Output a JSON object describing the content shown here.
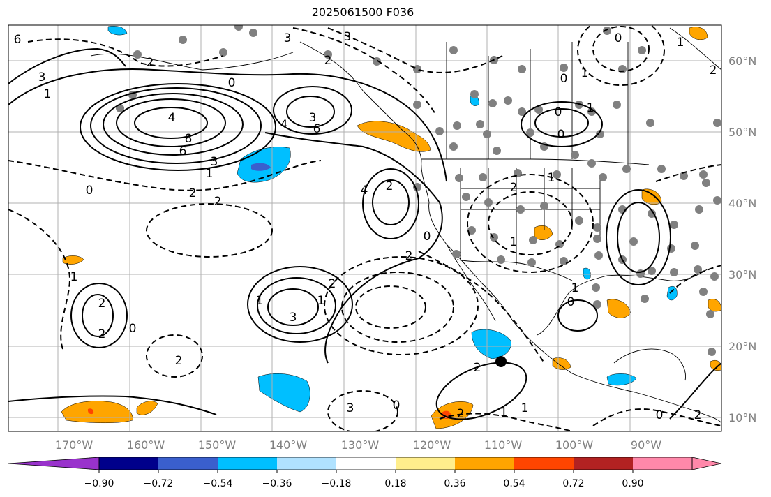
{
  "map": {
    "title": "2025061500 F036",
    "lon_ticks": [
      "170°W",
      "160°W",
      "150°W",
      "140°W",
      "130°W",
      "120°W",
      "110°W",
      "100°W",
      "90°W"
    ],
    "lat_ticks": [
      "60°N",
      "50°N",
      "40°N",
      "30°N",
      "20°N",
      "10°N"
    ],
    "contour_labels": [
      "6",
      "3",
      "1",
      "2",
      "0",
      "3",
      "4",
      "8",
      "6",
      "4",
      "3",
      "1",
      "0",
      "2",
      "2",
      "3",
      "6",
      "4",
      "2",
      "3",
      "2",
      "0",
      "2",
      "1",
      "2",
      "2",
      "3",
      "2",
      "1",
      "1",
      "0",
      "0",
      "3",
      "2",
      "2",
      "2",
      "1",
      "1",
      "0",
      "0",
      "0",
      "1",
      "1",
      "0",
      "1",
      "2",
      "1",
      "2",
      "1",
      "1",
      "0",
      "0",
      "2"
    ],
    "colors": {
      "contour": "#000000",
      "grid": "#b0b0b0",
      "coast": "#000000",
      "station_dot": "#808080",
      "tick_label": "#808080",
      "orange": "#ffa500",
      "red": "#ff4500",
      "light_blue": "#00bfff",
      "royal_blue": "#3a5fcd",
      "center_dot": "#000000"
    }
  },
  "colorbar": {
    "tick_labels": [
      "−0.90",
      "−0.72",
      "−0.54",
      "−0.36",
      "−0.18",
      "0.18",
      "0.36",
      "0.54",
      "0.72",
      "0.90"
    ],
    "segment_colors": [
      "#9932cc",
      "#00008b",
      "#3a5fcd",
      "#00bfff",
      "#b0e2ff",
      "#ffffff",
      "#ffee8c",
      "#ffa500",
      "#ff4500",
      "#b22222",
      "#ff88aa",
      "#ff88aa"
    ]
  }
}
